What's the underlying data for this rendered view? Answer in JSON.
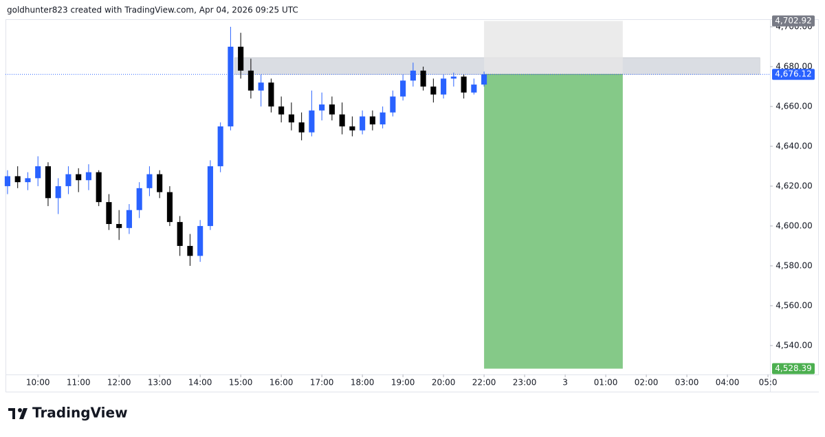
{
  "chart_data": {
    "type": "candlestick",
    "title": "goldhunter823 created with TradingView.com, Apr 04, 2026 09:25 UTC",
    "brand": "TradingView",
    "up_color": "#2962ff",
    "down_color": "#000000",
    "grid": false,
    "session_break": [
      21,
      22
    ],
    "xlim": [
      9.2,
      29.05
    ],
    "xticks": [
      {
        "value": 10,
        "label": "10:00"
      },
      {
        "value": 11,
        "label": "11:00"
      },
      {
        "value": 12,
        "label": "12:00"
      },
      {
        "value": 13,
        "label": "13:00"
      },
      {
        "value": 14,
        "label": "14:00"
      },
      {
        "value": 15,
        "label": "15:00"
      },
      {
        "value": 16,
        "label": "16:00"
      },
      {
        "value": 17,
        "label": "17:00"
      },
      {
        "value": 18,
        "label": "18:00"
      },
      {
        "value": 19,
        "label": "19:00"
      },
      {
        "value": 20,
        "label": "20:00"
      },
      {
        "value": 22,
        "label": "22:00"
      },
      {
        "value": 23,
        "label": "23:00"
      },
      {
        "value": 24,
        "label": "3"
      },
      {
        "value": 25,
        "label": "01:00"
      },
      {
        "value": 26,
        "label": "02:00"
      },
      {
        "value": 27,
        "label": "03:00"
      },
      {
        "value": 28,
        "label": "04:00"
      },
      {
        "value": 29,
        "label": "05:0"
      }
    ],
    "ylim": [
      4527.2,
      4703.1
    ],
    "yticks": [
      {
        "value": 4540,
        "label": "4,540.00"
      },
      {
        "value": 4560,
        "label": "4,560.00"
      },
      {
        "value": 4580,
        "label": "4,580.00"
      },
      {
        "value": 4600,
        "label": "4,600.00"
      },
      {
        "value": 4620,
        "label": "4,620.00"
      },
      {
        "value": 4640,
        "label": "4,640.00"
      },
      {
        "value": 4660,
        "label": "4,660.00"
      },
      {
        "value": 4680,
        "label": "4,680.00"
      },
      {
        "value": 4700,
        "label": "4,700.00"
      }
    ],
    "x": [
      9.25,
      9.5,
      9.75,
      10,
      10.25,
      10.5,
      10.75,
      11,
      11.25,
      11.5,
      11.75,
      12,
      12.25,
      12.5,
      12.75,
      13,
      13.25,
      13.5,
      13.75,
      14,
      14.25,
      14.5,
      14.75,
      15,
      15.25,
      15.5,
      15.75,
      16,
      16.25,
      16.5,
      16.75,
      17,
      17.25,
      17.5,
      17.75,
      18,
      18.25,
      18.5,
      18.75,
      19,
      19.25,
      19.5,
      19.75,
      20,
      20.25,
      20.5,
      20.75,
      22
    ],
    "open": [
      4620,
      4625,
      4622,
      4624,
      4630,
      4614,
      4620,
      4626,
      4623,
      4627,
      4612,
      4601,
      4599,
      4608,
      4619,
      4626,
      4617,
      4602,
      4590,
      4585,
      4600,
      4630,
      4650,
      4690,
      4678,
      4668,
      4672,
      4660,
      4656,
      4652,
      4647,
      4658,
      4661,
      4656,
      4650,
      4648,
      4655,
      4651,
      4657,
      4665,
      4673,
      4678,
      4670,
      4666,
      4674,
      4675,
      4667,
      4671
    ],
    "high": [
      4628,
      4630,
      4627,
      4635,
      4632,
      4624,
      4630,
      4629,
      4631,
      4628,
      4616,
      4608,
      4611,
      4622,
      4630,
      4628,
      4620,
      4605,
      4596,
      4603,
      4633,
      4652,
      4700,
      4697,
      4684,
      4676,
      4674,
      4665,
      4662,
      4657,
      4668,
      4667,
      4665,
      4662,
      4655,
      4658,
      4658,
      4660,
      4668,
      4676,
      4682,
      4680,
      4674,
      4676,
      4677,
      4676,
      4674,
      4677.5
    ],
    "low": [
      4616,
      4619,
      4618,
      4620,
      4610,
      4606,
      4616,
      4617,
      4618,
      4610,
      4598,
      4593,
      4596,
      4604,
      4615,
      4614,
      4600,
      4585,
      4580,
      4582,
      4598,
      4627,
      4648,
      4674,
      4664,
      4660,
      4657,
      4652,
      4648,
      4643,
      4645,
      4653,
      4653,
      4646,
      4645,
      4646,
      4648,
      4649,
      4655,
      4663,
      4670,
      4668,
      4662,
      4664,
      4670,
      4664,
      4666,
      4670
    ],
    "close": [
      4625,
      4622,
      4624,
      4630,
      4614,
      4620,
      4626,
      4623,
      4627,
      4612,
      4601,
      4599,
      4608,
      4619,
      4626,
      4617,
      4602,
      4590,
      4585,
      4600,
      4630,
      4650,
      4690,
      4678,
      4668,
      4672,
      4660,
      4656,
      4652,
      4647,
      4658,
      4661,
      4656,
      4650,
      4648,
      4655,
      4651,
      4657,
      4665,
      4673,
      4678,
      4670,
      4666,
      4674,
      4675,
      4667,
      4671,
      4676.12
    ],
    "zone": {
      "low": 4676.12,
      "high": 4684.5,
      "start": 14.85,
      "end": 28.8,
      "color": "#d1d4dc"
    },
    "position": {
      "start": 22,
      "end": 25.42,
      "entry": {
        "value": 4676.12,
        "label": "4,676.12",
        "color": "#2962ff"
      },
      "stop": {
        "value": 4702.92,
        "label": "4,702.92",
        "color": "#787b86"
      },
      "target": {
        "value": 4528.39,
        "label": "4,528.39",
        "color": "#4caf50"
      }
    }
  }
}
